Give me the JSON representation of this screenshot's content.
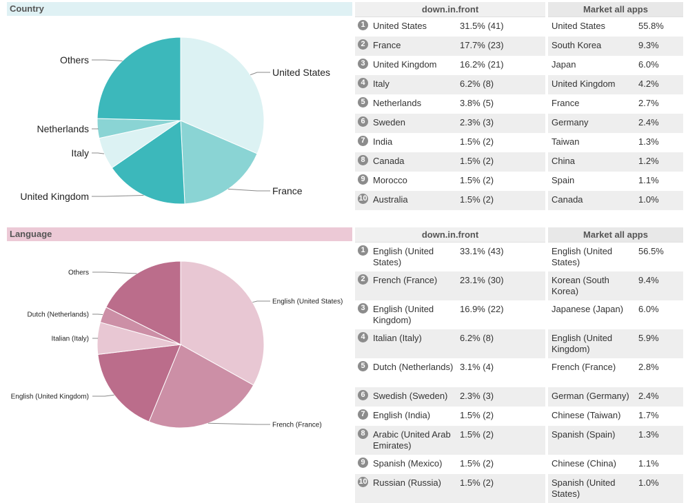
{
  "country": {
    "header": "Country",
    "header_bg": "#dff1f4",
    "chart_data": {
      "type": "pie",
      "categories": [
        "United States",
        "France",
        "United Kingdom",
        "Italy",
        "Netherlands",
        "Others"
      ],
      "values": [
        31.5,
        17.7,
        16.2,
        6.2,
        3.8,
        24.6
      ],
      "colors": [
        "#dcf2f3",
        "#8ad4d4",
        "#3cb8bb",
        "#dcf2f3",
        "#8ad4d4",
        "#3cb8bb"
      ]
    },
    "app_column_header": "down.in.front",
    "market_column_header": "Market all apps",
    "rows": [
      {
        "rank": "1",
        "name": "United States",
        "value": "31.5% (41)"
      },
      {
        "rank": "2",
        "name": "France",
        "value": "17.7% (23)"
      },
      {
        "rank": "3",
        "name": "United Kingdom",
        "value": "16.2% (21)"
      },
      {
        "rank": "4",
        "name": "Italy",
        "value": "6.2% (8)"
      },
      {
        "rank": "5",
        "name": "Netherlands",
        "value": "3.8% (5)"
      },
      {
        "rank": "6",
        "name": "Sweden",
        "value": "2.3% (3)"
      },
      {
        "rank": "7",
        "name": "India",
        "value": "1.5% (2)"
      },
      {
        "rank": "8",
        "name": "Canada",
        "value": "1.5% (2)"
      },
      {
        "rank": "9",
        "name": "Morocco",
        "value": "1.5% (2)"
      },
      {
        "rank": "10",
        "name": "Australia",
        "value": "1.5% (2)"
      }
    ],
    "market_rows": [
      {
        "name": "United States",
        "value": "55.8%"
      },
      {
        "name": "South Korea",
        "value": "9.3%"
      },
      {
        "name": "Japan",
        "value": "6.0%"
      },
      {
        "name": "United Kingdom",
        "value": "4.2%"
      },
      {
        "name": "France",
        "value": "2.7%"
      },
      {
        "name": "Germany",
        "value": "2.4%"
      },
      {
        "name": "Taiwan",
        "value": "1.3%"
      },
      {
        "name": "China",
        "value": "1.2%"
      },
      {
        "name": "Spain",
        "value": "1.1%"
      },
      {
        "name": "Canada",
        "value": "1.0%"
      }
    ]
  },
  "language": {
    "header": "Language",
    "header_bg": "#ecc9d6",
    "chart_data": {
      "type": "pie",
      "categories": [
        "English (United States)",
        "French (France)",
        "English (United Kingdom)",
        "Italian (Italy)",
        "Dutch (Netherlands)",
        "Others"
      ],
      "values": [
        33.1,
        23.1,
        16.9,
        6.2,
        3.1,
        17.6
      ],
      "colors": [
        "#e8c7d3",
        "#cc8fa6",
        "#bb6d8b",
        "#e8c7d3",
        "#cc8fa6",
        "#bb6d8b"
      ]
    },
    "app_column_header": "down.in.front",
    "market_column_header": "Market all apps",
    "rows": [
      {
        "rank": "1",
        "name": "English (United States)",
        "value": "33.1% (43)"
      },
      {
        "rank": "2",
        "name": "French (France)",
        "value": "23.1% (30)"
      },
      {
        "rank": "3",
        "name": "English (United Kingdom)",
        "value": "16.9% (22)"
      },
      {
        "rank": "4",
        "name": "Italian (Italy)",
        "value": "6.2% (8)"
      },
      {
        "rank": "5",
        "name": "Dutch (Netherlands)",
        "value": "3.1% (4)"
      },
      {
        "rank": "6",
        "name": "Swedish (Sweden)",
        "value": "2.3% (3)"
      },
      {
        "rank": "7",
        "name": "English (India)",
        "value": "1.5% (2)"
      },
      {
        "rank": "8",
        "name": "Arabic (United Arab Emirates)",
        "value": "1.5% (2)"
      },
      {
        "rank": "9",
        "name": "Spanish (Mexico)",
        "value": "1.5% (2)"
      },
      {
        "rank": "10",
        "name": "Russian (Russia)",
        "value": "1.5% (2)"
      }
    ],
    "market_rows": [
      {
        "name": "English (United States)",
        "value": "56.5%"
      },
      {
        "name": "Korean (South Korea)",
        "value": "9.4%"
      },
      {
        "name": "Japanese (Japan)",
        "value": "6.0%"
      },
      {
        "name": "English (United Kingdom)",
        "value": "5.9%"
      },
      {
        "name": "French (France)",
        "value": "2.8%"
      },
      {
        "name": "German (Germany)",
        "value": "2.4%"
      },
      {
        "name": "Chinese (Taiwan)",
        "value": "1.7%"
      },
      {
        "name": "Spanish (Spain)",
        "value": "1.3%"
      },
      {
        "name": "Chinese (China)",
        "value": "1.1%"
      },
      {
        "name": "Spanish (United States)",
        "value": "1.0%"
      }
    ]
  }
}
